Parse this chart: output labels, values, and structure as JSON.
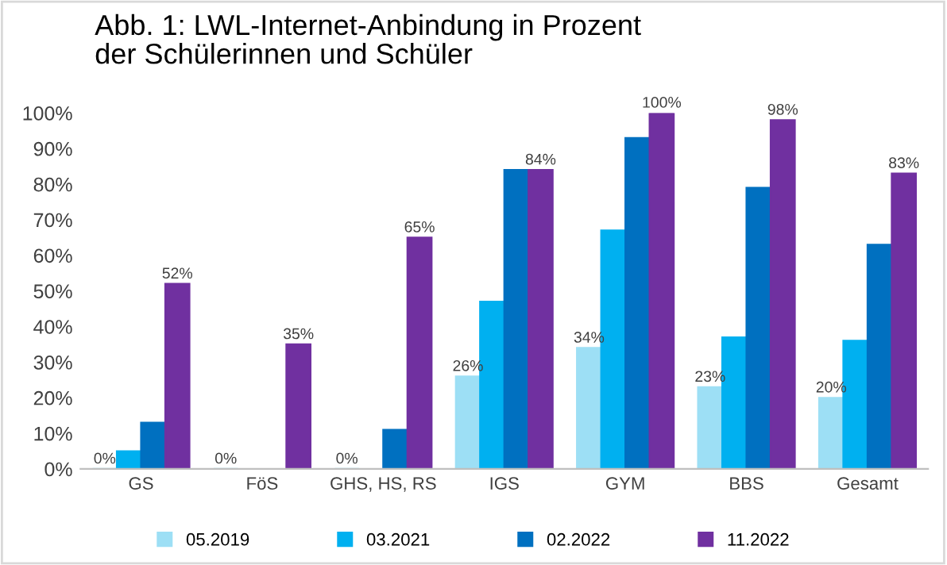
{
  "chart_data": {
    "type": "bar",
    "title": "Abb. 1: LWL-Internet-Anbindung in Prozent\nder Schülerinnen und Schüler",
    "categories": [
      "GS",
      "FöS",
      "GHS, HS, RS",
      "IGS",
      "GYM",
      "BBS",
      "Gesamt"
    ],
    "series": [
      {
        "name": "05.2019",
        "color": "#9ddff5",
        "values": [
          0,
          0,
          0,
          26,
          34,
          23,
          20
        ],
        "value_labels": [
          "0%",
          "0%",
          "0%",
          "26%",
          "34%",
          "23%",
          "20%"
        ]
      },
      {
        "name": "03.2021",
        "color": "#00b0f0",
        "values": [
          5,
          null,
          null,
          47,
          67,
          37,
          36
        ]
      },
      {
        "name": "02.2022",
        "color": "#0070c0",
        "values": [
          13,
          null,
          11,
          84,
          93,
          79,
          63
        ]
      },
      {
        "name": "11.2022",
        "color": "#7030a0",
        "values": [
          52,
          35,
          65,
          84,
          100,
          98,
          83
        ],
        "value_labels": [
          "52%",
          "35%",
          "65%",
          "84%",
          "100%",
          "98%",
          "83%"
        ]
      }
    ],
    "ylim": [
      0,
      100
    ],
    "yticks": [
      {
        "value": 0,
        "label": "0%"
      },
      {
        "value": 10,
        "label": "10%"
      },
      {
        "value": 20,
        "label": "20%"
      },
      {
        "value": 30,
        "label": "30%"
      },
      {
        "value": 40,
        "label": "40%"
      },
      {
        "value": 50,
        "label": "50%"
      },
      {
        "value": 60,
        "label": "60%"
      },
      {
        "value": 70,
        "label": "70%"
      },
      {
        "value": 80,
        "label": "80%"
      },
      {
        "value": 90,
        "label": "90%"
      },
      {
        "value": 100,
        "label": "100%"
      }
    ],
    "legend": "bottom"
  }
}
